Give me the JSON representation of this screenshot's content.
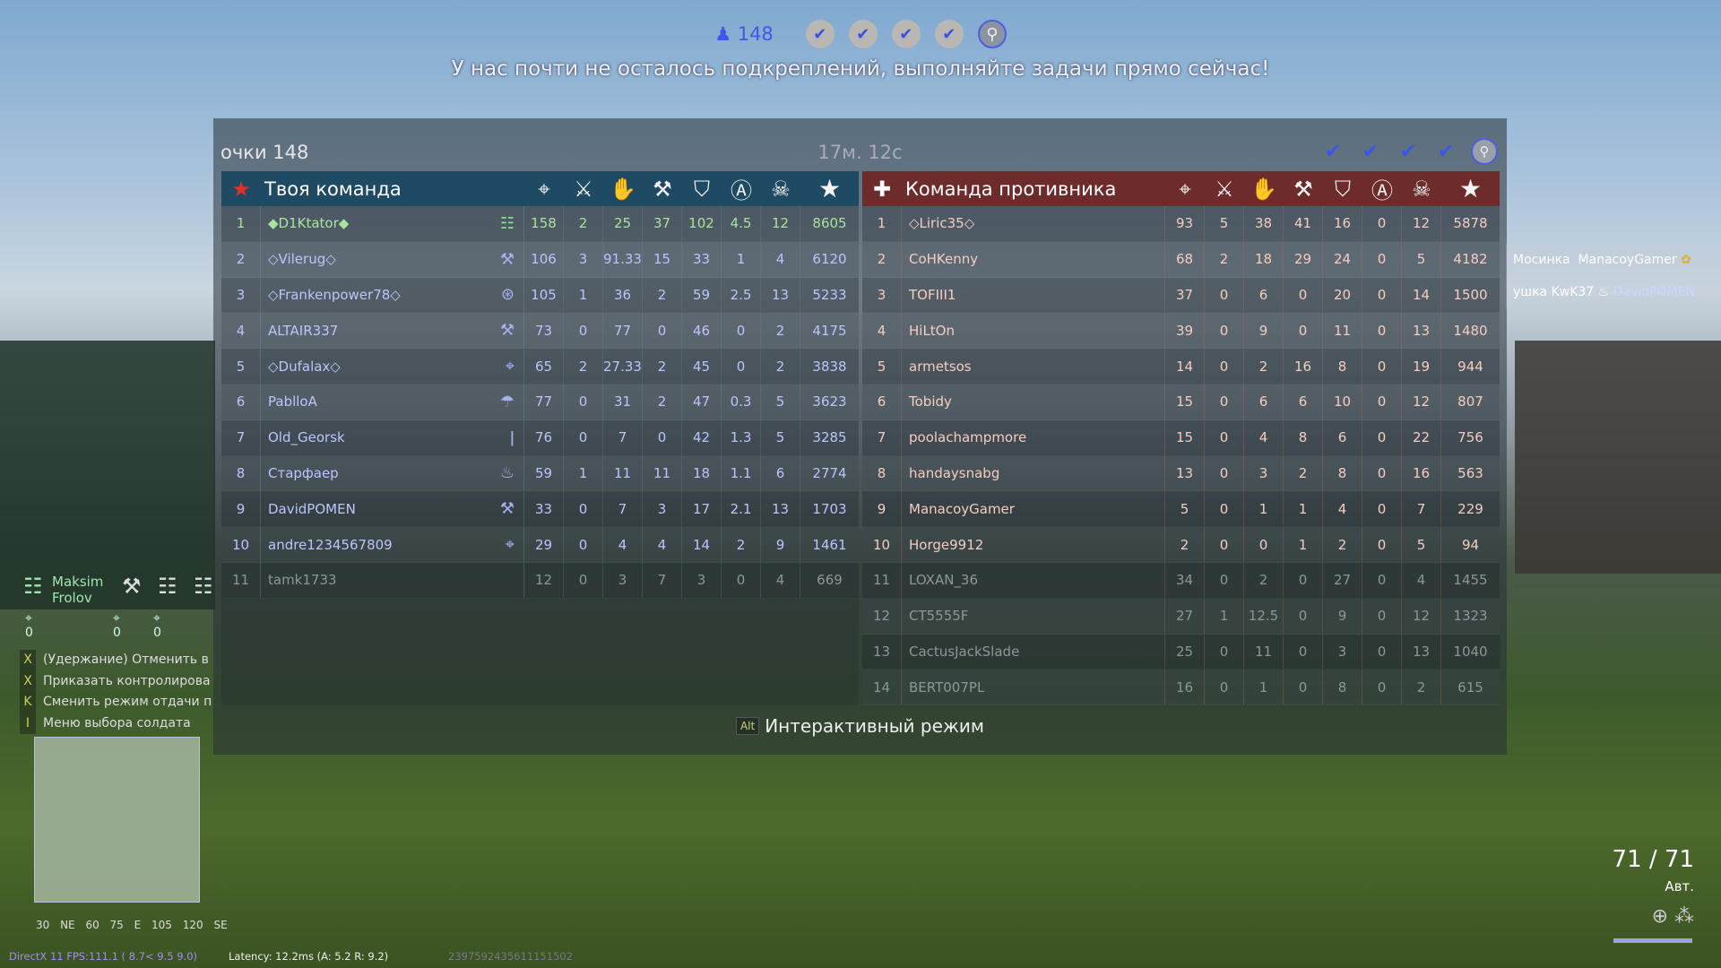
{
  "top": {
    "players_icon": "players-icon",
    "players_count": "148",
    "objectives": [
      "check",
      "check",
      "check",
      "check",
      "artillery-current"
    ],
    "message": "У нас почти не осталось подкреплений, выполняйте задачи прямо сейчас!"
  },
  "panel": {
    "score_label": "очки 148",
    "timer": "17м. 12с",
    "objectives": [
      "check",
      "check",
      "check",
      "check",
      "artillery-current"
    ],
    "alt_key": "Alt",
    "alt_label": "Интерактивный режим",
    "column_icons": [
      "kills-icon",
      "vehicle-kills-icon",
      "assists-icon",
      "engineer-icon",
      "defense-icon",
      "attack-icon",
      "deaths-icon",
      "score-star-icon"
    ]
  },
  "colors": {
    "ally_header": "#1e4a63",
    "enemy_header": "#6e2b2b",
    "ally_text": "#bcc4ff",
    "enemy_text": "#f3ccc2",
    "self_text": "#a9e39c",
    "check_blue": "#3b55e6"
  },
  "ally": {
    "title": "Твоя команда",
    "flag": "soviet-star-icon",
    "rows": [
      {
        "rank": "1",
        "name": "◆D1Ktator◆",
        "role": "squad-leader-icon",
        "stats": [
          "158",
          "2",
          "25",
          "37",
          "102",
          "4.5",
          "12",
          "8605"
        ],
        "state": "me"
      },
      {
        "rank": "2",
        "name": "◇Vilerug◇",
        "role": "engineer-icon",
        "stats": [
          "106",
          "3",
          "91.33",
          "15",
          "33",
          "1",
          "4",
          "6120"
        ]
      },
      {
        "rank": "3",
        "name": "◇Frankenpower78◇",
        "role": "tanker-icon",
        "stats": [
          "105",
          "1",
          "36",
          "2",
          "59",
          "2.5",
          "13",
          "5233"
        ]
      },
      {
        "rank": "4",
        "name": "ALTAIR337",
        "role": "engineer-icon",
        "stats": [
          "73",
          "0",
          "77",
          "0",
          "46",
          "0",
          "2",
          "4175"
        ]
      },
      {
        "rank": "5",
        "name": "◇Dufalax◇",
        "role": "sniper-icon",
        "stats": [
          "65",
          "2",
          "27.33",
          "2",
          "45",
          "0",
          "2",
          "3838"
        ]
      },
      {
        "rank": "6",
        "name": "PablloA",
        "role": "paratrooper-icon",
        "stats": [
          "77",
          "0",
          "31",
          "2",
          "47",
          "0.3",
          "5",
          "3623"
        ]
      },
      {
        "rank": "7",
        "name": "Old_Georsk",
        "role": "rifleman-icon",
        "stats": [
          "76",
          "0",
          "7",
          "0",
          "42",
          "1.3",
          "5",
          "3285"
        ]
      },
      {
        "rank": "8",
        "name": "Старфаер",
        "role": "flamethrower-icon",
        "stats": [
          "59",
          "1",
          "11",
          "11",
          "18",
          "1.1",
          "6",
          "2774"
        ]
      },
      {
        "rank": "9",
        "name": "DavidPOMEN",
        "role": "engineer-icon",
        "stats": [
          "33",
          "0",
          "7",
          "3",
          "17",
          "2.1",
          "13",
          "1703"
        ]
      },
      {
        "rank": "10",
        "name": "andre1234567809",
        "role": "sniper-icon",
        "stats": [
          "29",
          "0",
          "4",
          "4",
          "14",
          "2",
          "9",
          "1461"
        ]
      },
      {
        "rank": "11",
        "name": "tamk1733",
        "role": "",
        "stats": [
          "12",
          "0",
          "3",
          "7",
          "3",
          "0",
          "4",
          "669"
        ],
        "state": "gone"
      }
    ]
  },
  "enemy": {
    "title": "Команда противника",
    "flag": "balkenkreuz-icon",
    "rows": [
      {
        "rank": "1",
        "name": "◇Liric35◇",
        "stats": [
          "93",
          "5",
          "38",
          "41",
          "16",
          "0",
          "12",
          "5878"
        ]
      },
      {
        "rank": "2",
        "name": "CoHKenny",
        "stats": [
          "68",
          "2",
          "18",
          "29",
          "24",
          "0",
          "5",
          "4182"
        ]
      },
      {
        "rank": "3",
        "name": "TOFIII1",
        "stats": [
          "37",
          "0",
          "6",
          "0",
          "20",
          "0",
          "14",
          "1500"
        ]
      },
      {
        "rank": "4",
        "name": "HiLtOn",
        "stats": [
          "39",
          "0",
          "9",
          "0",
          "11",
          "0",
          "13",
          "1480"
        ]
      },
      {
        "rank": "5",
        "name": "armetsos",
        "stats": [
          "14",
          "0",
          "2",
          "16",
          "8",
          "0",
          "19",
          "944"
        ]
      },
      {
        "rank": "6",
        "name": "Tobidy",
        "stats": [
          "15",
          "0",
          "6",
          "6",
          "10",
          "0",
          "12",
          "807"
        ]
      },
      {
        "rank": "7",
        "name": "poolachampmore",
        "stats": [
          "15",
          "0",
          "4",
          "8",
          "6",
          "0",
          "22",
          "756"
        ]
      },
      {
        "rank": "8",
        "name": "handaysnabg",
        "stats": [
          "13",
          "0",
          "3",
          "2",
          "8",
          "0",
          "16",
          "563"
        ]
      },
      {
        "rank": "9",
        "name": "ManacoyGamer",
        "stats": [
          "5",
          "0",
          "1",
          "1",
          "4",
          "0",
          "7",
          "229"
        ]
      },
      {
        "rank": "10",
        "name": "Horge9912",
        "stats": [
          "2",
          "0",
          "0",
          "1",
          "2",
          "0",
          "5",
          "94"
        ]
      },
      {
        "rank": "11",
        "name": "LOXAN_36",
        "stats": [
          "34",
          "0",
          "2",
          "0",
          "27",
          "0",
          "4",
          "1455"
        ],
        "state": "gone"
      },
      {
        "rank": "12",
        "name": "CT5555F",
        "stats": [
          "27",
          "1",
          "12.5",
          "0",
          "9",
          "0",
          "12",
          "1323"
        ],
        "state": "gone"
      },
      {
        "rank": "13",
        "name": "CactusJackSlade",
        "stats": [
          "25",
          "0",
          "11",
          "0",
          "3",
          "0",
          "13",
          "1040"
        ],
        "state": "gone"
      },
      {
        "rank": "14",
        "name": "BERT007PL",
        "stats": [
          "16",
          "0",
          "1",
          "0",
          "8",
          "0",
          "2",
          "615"
        ],
        "state": "gone"
      }
    ]
  },
  "squad": {
    "leader_first": "Maksim",
    "leader_last": "Frolov",
    "counts": [
      "0",
      "0",
      "0"
    ]
  },
  "hints": [
    {
      "key": "X",
      "label": "(Удержание)  Отменить в"
    },
    {
      "key": "X",
      "label": "Приказать контролирова"
    },
    {
      "key": "K",
      "label": "Сменить режим отдачи п"
    },
    {
      "key": "I",
      "label": "Меню выбора солдата"
    }
  ],
  "compass": "30 NE 60 75 E 105 120 SE",
  "debug": {
    "fps": "DirectX 11 FPS:111.1 ( 8.7< 9.5  9.0)",
    "latency": "Latency: 12.2ms (A:  5.2 R:  9.2)",
    "id": "2397592435611151502"
  },
  "killfeed": [
    {
      "weapon": "Мосинка",
      "player": "ManacoyGamer"
    },
    {
      "weapon": "ушка KwK37",
      "player": "DavidPOMEN"
    }
  ],
  "ammo": {
    "count": "71 / 71",
    "mode": "Авт."
  }
}
